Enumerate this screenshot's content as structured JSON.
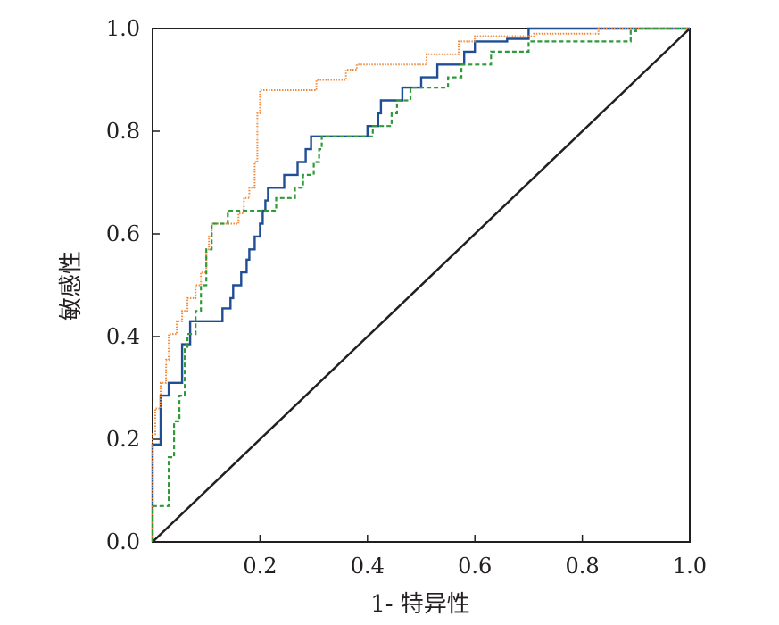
{
  "chart_data": {
    "type": "line",
    "title": "",
    "xlabel": "1- 特异性",
    "ylabel": "敏感性",
    "xlim": [
      0,
      1
    ],
    "ylim": [
      0,
      1
    ],
    "grid": false,
    "xticks": [
      "0.2",
      "0.4",
      "0.6",
      "0.8",
      "1.0"
    ],
    "yticks": [
      "0.0",
      "0.2",
      "0.4",
      "0.6",
      "0.8",
      "1.0"
    ],
    "colors": {
      "blue": "#1f4e95",
      "orange": "#f08a3c",
      "green": "#2e9a3a",
      "reference": "#231f20",
      "frame": "#231f20"
    },
    "series": [
      {
        "color": "blue",
        "style": "solid",
        "points": [
          [
            0,
            0
          ],
          [
            0,
            0.19
          ],
          [
            0.015,
            0.19
          ],
          [
            0.015,
            0.285
          ],
          [
            0.03,
            0.285
          ],
          [
            0.03,
            0.31
          ],
          [
            0.055,
            0.31
          ],
          [
            0.055,
            0.385
          ],
          [
            0.07,
            0.385
          ],
          [
            0.07,
            0.43
          ],
          [
            0.13,
            0.43
          ],
          [
            0.13,
            0.455
          ],
          [
            0.145,
            0.455
          ],
          [
            0.145,
            0.475
          ],
          [
            0.15,
            0.475
          ],
          [
            0.15,
            0.5
          ],
          [
            0.165,
            0.5
          ],
          [
            0.165,
            0.525
          ],
          [
            0.175,
            0.525
          ],
          [
            0.175,
            0.55
          ],
          [
            0.18,
            0.55
          ],
          [
            0.18,
            0.57
          ],
          [
            0.19,
            0.57
          ],
          [
            0.19,
            0.595
          ],
          [
            0.2,
            0.595
          ],
          [
            0.2,
            0.62
          ],
          [
            0.205,
            0.62
          ],
          [
            0.205,
            0.645
          ],
          [
            0.21,
            0.645
          ],
          [
            0.21,
            0.665
          ],
          [
            0.215,
            0.665
          ],
          [
            0.215,
            0.69
          ],
          [
            0.245,
            0.69
          ],
          [
            0.245,
            0.715
          ],
          [
            0.27,
            0.715
          ],
          [
            0.27,
            0.74
          ],
          [
            0.285,
            0.74
          ],
          [
            0.285,
            0.765
          ],
          [
            0.295,
            0.765
          ],
          [
            0.295,
            0.79
          ],
          [
            0.4,
            0.79
          ],
          [
            0.4,
            0.81
          ],
          [
            0.42,
            0.81
          ],
          [
            0.42,
            0.835
          ],
          [
            0.425,
            0.835
          ],
          [
            0.425,
            0.86
          ],
          [
            0.465,
            0.86
          ],
          [
            0.465,
            0.885
          ],
          [
            0.5,
            0.885
          ],
          [
            0.5,
            0.905
          ],
          [
            0.53,
            0.905
          ],
          [
            0.53,
            0.93
          ],
          [
            0.58,
            0.93
          ],
          [
            0.58,
            0.955
          ],
          [
            0.6,
            0.955
          ],
          [
            0.6,
            0.975
          ],
          [
            0.66,
            0.975
          ],
          [
            0.66,
            0.98
          ],
          [
            0.7,
            0.98
          ],
          [
            0.7,
            1.0
          ],
          [
            1.0,
            1.0
          ]
        ]
      },
      {
        "color": "orange",
        "style": "dotted",
        "points": [
          [
            0,
            0
          ],
          [
            0,
            0.21
          ],
          [
            0.005,
            0.21
          ],
          [
            0.005,
            0.26
          ],
          [
            0.015,
            0.26
          ],
          [
            0.015,
            0.31
          ],
          [
            0.025,
            0.31
          ],
          [
            0.025,
            0.355
          ],
          [
            0.03,
            0.355
          ],
          [
            0.03,
            0.405
          ],
          [
            0.045,
            0.405
          ],
          [
            0.045,
            0.43
          ],
          [
            0.055,
            0.43
          ],
          [
            0.055,
            0.45
          ],
          [
            0.065,
            0.45
          ],
          [
            0.065,
            0.475
          ],
          [
            0.08,
            0.475
          ],
          [
            0.08,
            0.5
          ],
          [
            0.09,
            0.5
          ],
          [
            0.09,
            0.525
          ],
          [
            0.1,
            0.525
          ],
          [
            0.1,
            0.57
          ],
          [
            0.105,
            0.57
          ],
          [
            0.105,
            0.595
          ],
          [
            0.11,
            0.595
          ],
          [
            0.11,
            0.62
          ],
          [
            0.16,
            0.62
          ],
          [
            0.16,
            0.64
          ],
          [
            0.17,
            0.64
          ],
          [
            0.17,
            0.67
          ],
          [
            0.18,
            0.67
          ],
          [
            0.18,
            0.69
          ],
          [
            0.19,
            0.69
          ],
          [
            0.19,
            0.74
          ],
          [
            0.195,
            0.74
          ],
          [
            0.195,
            0.835
          ],
          [
            0.2,
            0.835
          ],
          [
            0.2,
            0.88
          ],
          [
            0.305,
            0.88
          ],
          [
            0.305,
            0.9
          ],
          [
            0.36,
            0.9
          ],
          [
            0.36,
            0.92
          ],
          [
            0.38,
            0.92
          ],
          [
            0.38,
            0.93
          ],
          [
            0.51,
            0.93
          ],
          [
            0.51,
            0.95
          ],
          [
            0.57,
            0.95
          ],
          [
            0.57,
            0.975
          ],
          [
            0.6,
            0.975
          ],
          [
            0.6,
            0.985
          ],
          [
            0.71,
            0.985
          ],
          [
            0.71,
            0.99
          ],
          [
            0.83,
            0.99
          ],
          [
            0.83,
            1.0
          ],
          [
            1.0,
            1.0
          ]
        ]
      },
      {
        "color": "green",
        "style": "dashed",
        "points": [
          [
            0,
            0
          ],
          [
            0,
            0.07
          ],
          [
            0.03,
            0.07
          ],
          [
            0.03,
            0.165
          ],
          [
            0.04,
            0.165
          ],
          [
            0.04,
            0.235
          ],
          [
            0.05,
            0.235
          ],
          [
            0.05,
            0.285
          ],
          [
            0.06,
            0.285
          ],
          [
            0.06,
            0.38
          ],
          [
            0.065,
            0.38
          ],
          [
            0.065,
            0.405
          ],
          [
            0.08,
            0.405
          ],
          [
            0.08,
            0.45
          ],
          [
            0.09,
            0.45
          ],
          [
            0.09,
            0.5
          ],
          [
            0.1,
            0.5
          ],
          [
            0.1,
            0.57
          ],
          [
            0.11,
            0.57
          ],
          [
            0.11,
            0.62
          ],
          [
            0.14,
            0.62
          ],
          [
            0.14,
            0.645
          ],
          [
            0.23,
            0.645
          ],
          [
            0.23,
            0.67
          ],
          [
            0.265,
            0.67
          ],
          [
            0.265,
            0.69
          ],
          [
            0.28,
            0.69
          ],
          [
            0.28,
            0.715
          ],
          [
            0.3,
            0.715
          ],
          [
            0.3,
            0.74
          ],
          [
            0.31,
            0.74
          ],
          [
            0.31,
            0.765
          ],
          [
            0.315,
            0.765
          ],
          [
            0.315,
            0.79
          ],
          [
            0.41,
            0.79
          ],
          [
            0.41,
            0.81
          ],
          [
            0.445,
            0.81
          ],
          [
            0.445,
            0.835
          ],
          [
            0.455,
            0.835
          ],
          [
            0.455,
            0.86
          ],
          [
            0.48,
            0.86
          ],
          [
            0.48,
            0.885
          ],
          [
            0.55,
            0.885
          ],
          [
            0.55,
            0.905
          ],
          [
            0.575,
            0.905
          ],
          [
            0.575,
            0.93
          ],
          [
            0.63,
            0.93
          ],
          [
            0.63,
            0.955
          ],
          [
            0.7,
            0.955
          ],
          [
            0.7,
            0.975
          ],
          [
            0.89,
            0.975
          ],
          [
            0.89,
            0.995
          ],
          [
            0.9,
            0.995
          ],
          [
            0.9,
            1.0
          ],
          [
            1.0,
            1.0
          ]
        ]
      }
    ]
  }
}
